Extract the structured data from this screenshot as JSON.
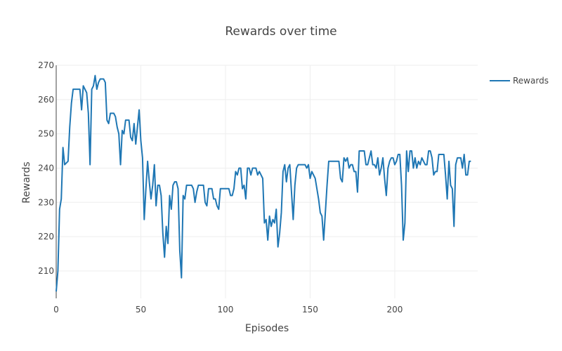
{
  "chart_data": {
    "type": "line",
    "title": "Rewards over time",
    "xlabel": "Episodes",
    "ylabel": "Rewards",
    "xlim": [
      0,
      249
    ],
    "ylim": [
      202,
      270
    ],
    "xticks": [
      0,
      50,
      100,
      150,
      200
    ],
    "yticks": [
      210,
      220,
      230,
      240,
      250,
      260,
      270
    ],
    "grid": true,
    "legend_position": "top-right",
    "series": [
      {
        "name": "Rewards",
        "color": "#1f77b4",
        "points": [
          [
            0,
            204
          ],
          [
            1,
            210
          ],
          [
            2,
            228
          ],
          [
            3,
            231
          ],
          [
            4,
            246
          ],
          [
            5,
            241
          ],
          [
            7,
            242
          ],
          [
            8,
            252
          ],
          [
            9,
            259
          ],
          [
            10,
            263
          ],
          [
            12,
            263
          ],
          [
            14,
            263
          ],
          [
            15,
            257
          ],
          [
            16,
            264
          ],
          [
            17,
            263
          ],
          [
            18,
            262
          ],
          [
            19,
            256
          ],
          [
            20,
            241
          ],
          [
            21,
            263
          ],
          [
            22,
            264
          ],
          [
            23,
            267
          ],
          [
            24,
            263
          ],
          [
            25,
            265
          ],
          [
            26,
            266
          ],
          [
            28,
            266
          ],
          [
            29,
            265
          ],
          [
            30,
            254
          ],
          [
            31,
            253
          ],
          [
            32,
            256
          ],
          [
            34,
            256
          ],
          [
            35,
            255
          ],
          [
            36,
            252
          ],
          [
            37,
            250
          ],
          [
            38,
            241
          ],
          [
            39,
            251
          ],
          [
            40,
            250
          ],
          [
            41,
            254
          ],
          [
            43,
            254
          ],
          [
            44,
            249
          ],
          [
            45,
            248
          ],
          [
            46,
            253
          ],
          [
            47,
            247
          ],
          [
            48,
            252
          ],
          [
            49,
            257
          ],
          [
            50,
            248
          ],
          [
            51,
            243
          ],
          [
            52,
            225
          ],
          [
            53,
            234
          ],
          [
            54,
            242
          ],
          [
            55,
            236
          ],
          [
            56,
            231
          ],
          [
            57,
            235
          ],
          [
            58,
            241
          ],
          [
            59,
            229
          ],
          [
            60,
            235
          ],
          [
            61,
            235
          ],
          [
            62,
            232
          ],
          [
            63,
            221
          ],
          [
            64,
            214
          ],
          [
            65,
            223
          ],
          [
            66,
            218
          ],
          [
            67,
            232
          ],
          [
            68,
            228
          ],
          [
            69,
            235
          ],
          [
            70,
            236
          ],
          [
            71,
            236
          ],
          [
            72,
            234
          ],
          [
            73,
            216
          ],
          [
            74,
            208
          ],
          [
            75,
            232
          ],
          [
            76,
            231
          ],
          [
            77,
            235
          ],
          [
            78,
            235
          ],
          [
            80,
            235
          ],
          [
            81,
            234
          ],
          [
            82,
            230
          ],
          [
            83,
            233
          ],
          [
            84,
            235
          ],
          [
            86,
            235
          ],
          [
            87,
            235
          ],
          [
            88,
            230
          ],
          [
            89,
            229
          ],
          [
            90,
            234
          ],
          [
            92,
            234
          ],
          [
            93,
            231
          ],
          [
            94,
            231
          ],
          [
            95,
            229
          ],
          [
            96,
            228
          ],
          [
            97,
            234
          ],
          [
            99,
            234
          ],
          [
            100,
            234
          ],
          [
            102,
            234
          ],
          [
            103,
            232
          ],
          [
            104,
            232
          ],
          [
            105,
            234
          ],
          [
            106,
            239
          ],
          [
            107,
            238
          ],
          [
            108,
            240
          ],
          [
            109,
            240
          ],
          [
            110,
            234
          ],
          [
            111,
            235
          ],
          [
            112,
            231
          ],
          [
            113,
            240
          ],
          [
            114,
            240
          ],
          [
            115,
            238
          ],
          [
            116,
            240
          ],
          [
            118,
            240
          ],
          [
            119,
            238
          ],
          [
            120,
            239
          ],
          [
            121,
            238
          ],
          [
            122,
            237
          ],
          [
            123,
            224
          ],
          [
            124,
            225
          ],
          [
            125,
            219
          ],
          [
            126,
            226
          ],
          [
            127,
            223
          ],
          [
            128,
            225
          ],
          [
            129,
            224
          ],
          [
            130,
            228
          ],
          [
            131,
            217
          ],
          [
            132,
            221
          ],
          [
            133,
            227
          ],
          [
            134,
            239
          ],
          [
            135,
            241
          ],
          [
            136,
            236
          ],
          [
            137,
            240
          ],
          [
            138,
            241
          ],
          [
            139,
            233
          ],
          [
            140,
            225
          ],
          [
            141,
            235
          ],
          [
            142,
            240
          ],
          [
            143,
            241
          ],
          [
            145,
            241
          ],
          [
            146,
            241
          ],
          [
            147,
            241
          ],
          [
            148,
            240
          ],
          [
            149,
            241
          ],
          [
            150,
            237
          ],
          [
            151,
            239
          ],
          [
            152,
            238
          ],
          [
            153,
            237
          ],
          [
            154,
            234
          ],
          [
            155,
            231
          ],
          [
            156,
            227
          ],
          [
            157,
            226
          ],
          [
            158,
            219
          ],
          [
            159,
            227
          ],
          [
            160,
            235
          ],
          [
            161,
            242
          ],
          [
            163,
            242
          ],
          [
            165,
            242
          ],
          [
            167,
            242
          ],
          [
            168,
            237
          ],
          [
            169,
            236
          ],
          [
            170,
            243
          ],
          [
            171,
            242
          ],
          [
            172,
            243
          ],
          [
            173,
            240
          ],
          [
            174,
            241
          ],
          [
            175,
            241
          ],
          [
            176,
            239
          ],
          [
            177,
            239
          ],
          [
            178,
            233
          ],
          [
            179,
            245
          ],
          [
            181,
            245
          ],
          [
            182,
            245
          ],
          [
            183,
            241
          ],
          [
            184,
            241
          ],
          [
            185,
            243
          ],
          [
            186,
            245
          ],
          [
            187,
            241
          ],
          [
            188,
            241
          ],
          [
            189,
            240
          ],
          [
            190,
            243
          ],
          [
            191,
            238
          ],
          [
            192,
            240
          ],
          [
            193,
            243
          ],
          [
            194,
            237
          ],
          [
            195,
            232
          ],
          [
            196,
            240
          ],
          [
            197,
            242
          ],
          [
            198,
            243
          ],
          [
            199,
            243
          ],
          [
            200,
            241
          ],
          [
            201,
            242
          ],
          [
            202,
            244
          ],
          [
            203,
            244
          ],
          [
            204,
            235
          ],
          [
            205,
            219
          ],
          [
            206,
            224
          ],
          [
            207,
            245
          ],
          [
            208,
            239
          ],
          [
            209,
            245
          ],
          [
            210,
            245
          ],
          [
            211,
            240
          ],
          [
            212,
            243
          ],
          [
            213,
            240
          ],
          [
            214,
            242
          ],
          [
            215,
            241
          ],
          [
            216,
            243
          ],
          [
            217,
            242
          ],
          [
            218,
            241
          ],
          [
            219,
            241
          ],
          [
            220,
            245
          ],
          [
            221,
            245
          ],
          [
            222,
            243
          ],
          [
            223,
            238
          ],
          [
            224,
            239
          ],
          [
            225,
            239
          ],
          [
            226,
            244
          ],
          [
            228,
            244
          ],
          [
            229,
            244
          ],
          [
            230,
            238
          ],
          [
            231,
            231
          ],
          [
            232,
            242
          ],
          [
            233,
            235
          ],
          [
            234,
            234
          ],
          [
            235,
            223
          ],
          [
            236,
            241
          ],
          [
            237,
            243
          ],
          [
            239,
            243
          ],
          [
            240,
            240
          ],
          [
            241,
            244
          ],
          [
            242,
            238
          ],
          [
            243,
            238
          ],
          [
            244,
            242
          ],
          [
            245,
            242
          ]
        ]
      }
    ]
  }
}
